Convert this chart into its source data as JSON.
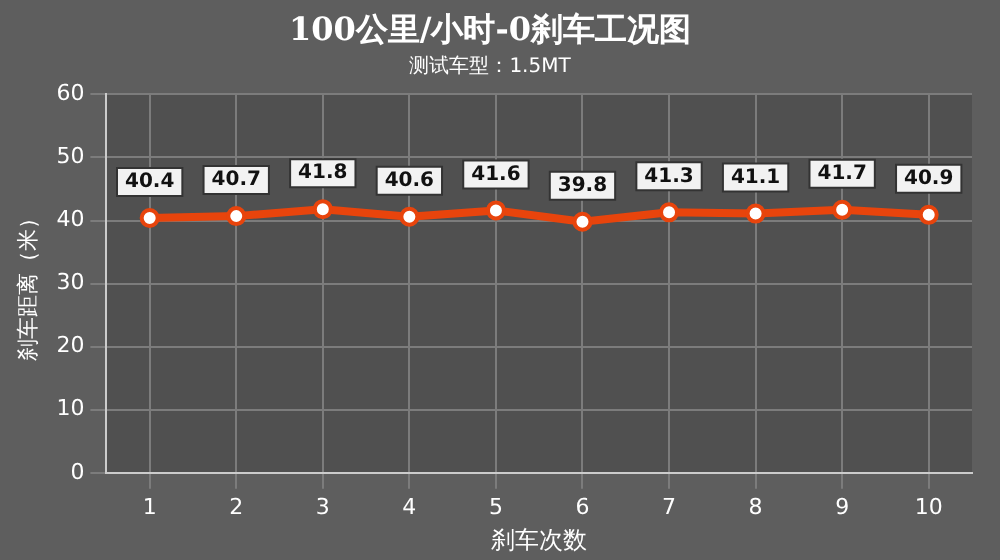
{
  "chart_data": {
    "type": "line",
    "title": "100公里/小时-0刹车工况图",
    "subtitle": "测试车型：1.5MT",
    "xlabel": "刹车次数",
    "ylabel": "刹车距离（米）",
    "categories": [
      "1",
      "2",
      "3",
      "4",
      "5",
      "6",
      "7",
      "8",
      "9",
      "10"
    ],
    "series": [
      {
        "color": "#e8440c",
        "values": [
          40.4,
          40.7,
          41.8,
          40.6,
          41.6,
          39.8,
          41.3,
          41.1,
          41.7,
          40.9
        ]
      }
    ],
    "ylim": [
      0,
      60
    ],
    "yticks": [
      0,
      10,
      20,
      30,
      40,
      50,
      60
    ],
    "grid": true,
    "legend": false,
    "marker": "circle",
    "line_style": "solid",
    "data_labels": true
  }
}
